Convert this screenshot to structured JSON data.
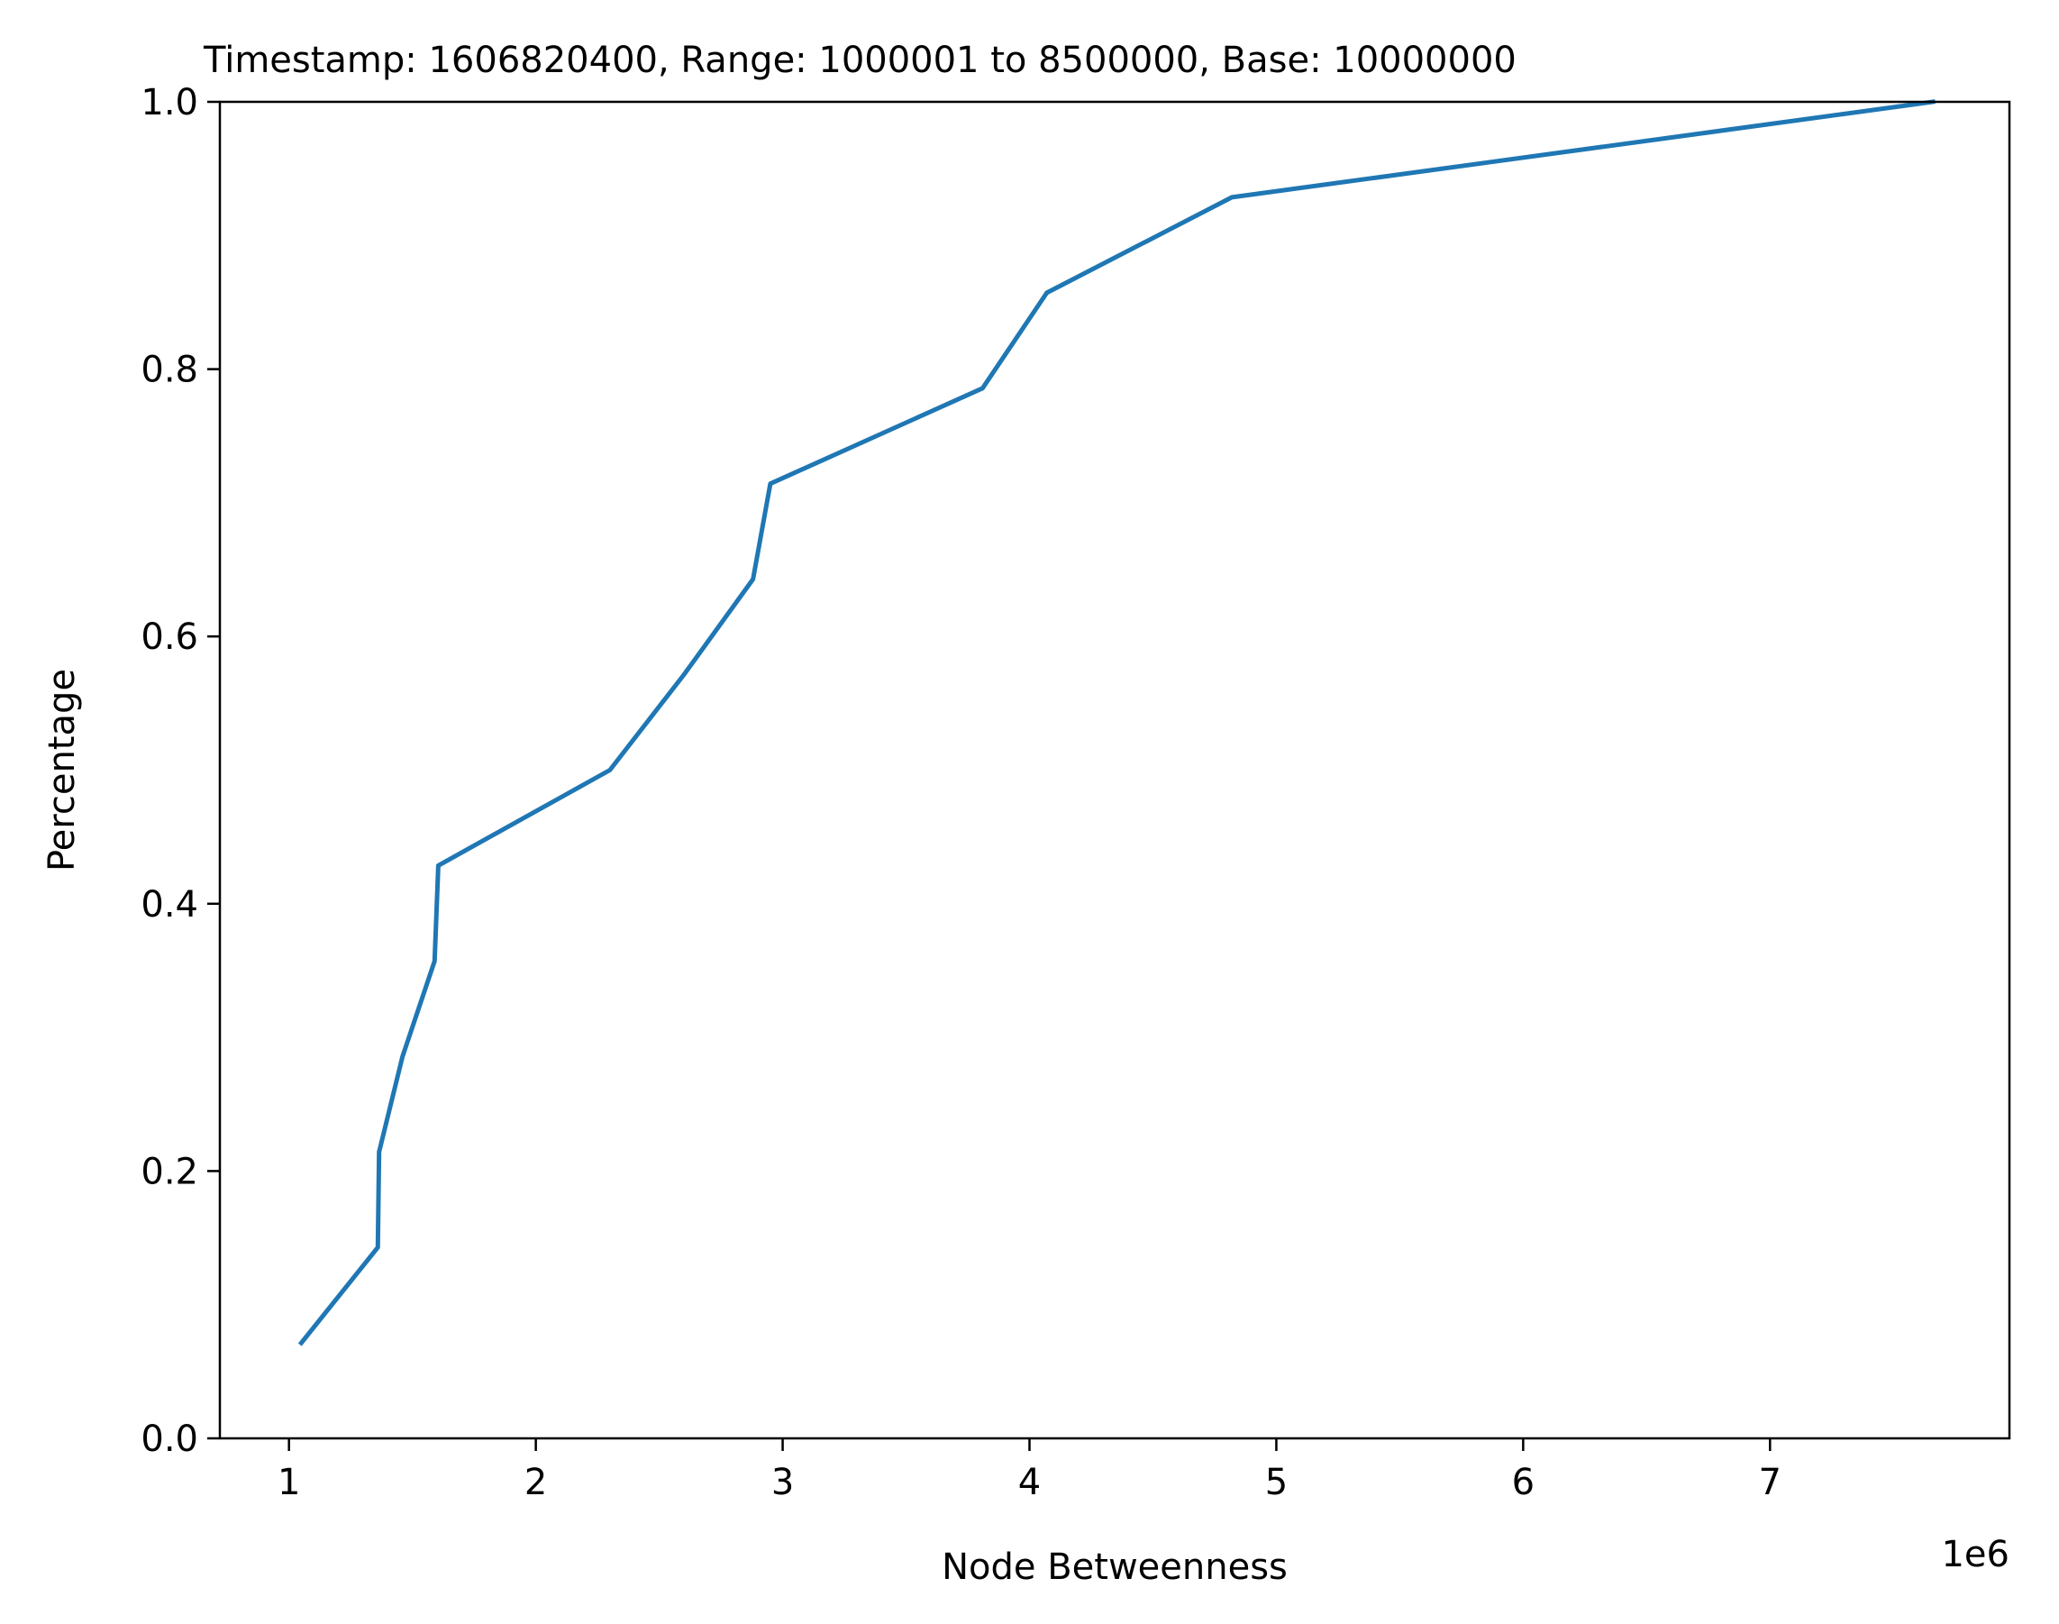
{
  "chart_data": {
    "type": "line",
    "title": "Timestamp: 1606820400, Range: 1000001 to 8500000, Base: 10000000",
    "xlabel": "Node Betweenness",
    "ylabel": "Percentage",
    "x_offset_label": "1e6",
    "xlim": [
      720000,
      7970000
    ],
    "ylim": [
      0,
      1
    ],
    "x_ticks": [
      {
        "value": 1000000,
        "label": "1"
      },
      {
        "value": 2000000,
        "label": "2"
      },
      {
        "value": 3000000,
        "label": "3"
      },
      {
        "value": 4000000,
        "label": "4"
      },
      {
        "value": 5000000,
        "label": "5"
      },
      {
        "value": 6000000,
        "label": "6"
      },
      {
        "value": 7000000,
        "label": "7"
      }
    ],
    "y_ticks": [
      {
        "value": 0.0,
        "label": "0.0"
      },
      {
        "value": 0.2,
        "label": "0.2"
      },
      {
        "value": 0.4,
        "label": "0.4"
      },
      {
        "value": 0.6,
        "label": "0.6"
      },
      {
        "value": 0.8,
        "label": "0.8"
      },
      {
        "value": 1.0,
        "label": "1.0"
      }
    ],
    "grid": false,
    "series": [
      {
        "color": "#1f77b4",
        "x": [
          1050000,
          1360000,
          1365000,
          1460000,
          1590000,
          1605000,
          2300000,
          2600000,
          2880000,
          2950000,
          3810000,
          4070000,
          4820000,
          7660000
        ],
        "y": [
          0.0714,
          0.1429,
          0.2143,
          0.2857,
          0.3571,
          0.4286,
          0.5,
          0.5714,
          0.6429,
          0.7143,
          0.7857,
          0.8571,
          0.9286,
          1.0
        ]
      }
    ]
  }
}
